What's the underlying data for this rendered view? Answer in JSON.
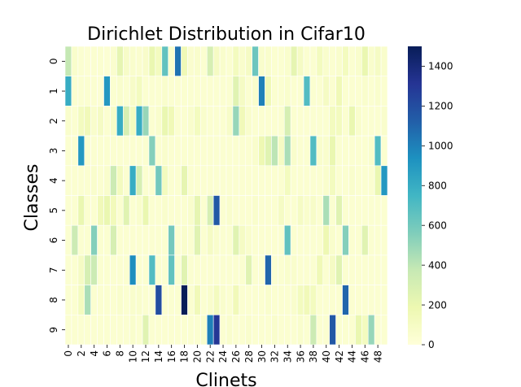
{
  "chart_data": {
    "type": "heatmap",
    "title": "Dirichlet Distribution in Cifar10",
    "xlabel": "Clinets",
    "ylabel": "Classes",
    "x_categories": [
      0,
      1,
      2,
      3,
      4,
      5,
      6,
      7,
      8,
      9,
      10,
      11,
      12,
      13,
      14,
      15,
      16,
      17,
      18,
      19,
      20,
      21,
      22,
      23,
      24,
      25,
      26,
      27,
      28,
      29,
      30,
      31,
      32,
      33,
      34,
      35,
      36,
      37,
      38,
      39,
      40,
      41,
      42,
      43,
      44,
      45,
      46,
      47,
      48,
      49
    ],
    "x_tick_labels": [
      "0",
      "2",
      "4",
      "6",
      "8",
      "10",
      "12",
      "14",
      "16",
      "18",
      "20",
      "22",
      "24",
      "26",
      "28",
      "30",
      "32",
      "34",
      "36",
      "38",
      "40",
      "42",
      "44",
      "46",
      "48"
    ],
    "y_categories": [
      "0",
      "1",
      "2",
      "3",
      "4",
      "5",
      "6",
      "7",
      "8",
      "9"
    ],
    "colorbar": {
      "min": 0,
      "max": 1500,
      "ticks": [
        0,
        200,
        400,
        600,
        800,
        1000,
        1200,
        1400
      ],
      "colormap": "YlGnBu"
    },
    "values": [
      [
        380,
        60,
        40,
        30,
        40,
        40,
        30,
        50,
        220,
        80,
        60,
        50,
        70,
        200,
        120,
        650,
        50,
        1050,
        160,
        50,
        60,
        40,
        300,
        100,
        60,
        40,
        120,
        60,
        100,
        620,
        60,
        60,
        40,
        40,
        60,
        220,
        100,
        40,
        40,
        120,
        60,
        40,
        60,
        120,
        40,
        60,
        200,
        60,
        100,
        60
      ],
      [
        800,
        40,
        40,
        40,
        40,
        30,
        900,
        40,
        60,
        40,
        80,
        120,
        40,
        40,
        40,
        60,
        40,
        40,
        40,
        40,
        40,
        40,
        40,
        40,
        40,
        40,
        250,
        100,
        40,
        60,
        1000,
        160,
        40,
        40,
        60,
        40,
        40,
        700,
        40,
        40,
        100,
        40,
        160,
        40,
        40,
        40,
        60,
        40,
        60,
        40
      ],
      [
        60,
        40,
        120,
        150,
        60,
        100,
        40,
        80,
        800,
        300,
        120,
        800,
        500,
        40,
        60,
        200,
        160,
        40,
        40,
        60,
        120,
        60,
        40,
        40,
        40,
        80,
        500,
        150,
        60,
        40,
        40,
        40,
        40,
        40,
        300,
        40,
        40,
        40,
        40,
        40,
        40,
        120,
        120,
        40,
        200,
        60,
        40,
        40,
        40,
        60
      ],
      [
        40,
        40,
        900,
        40,
        40,
        40,
        40,
        40,
        40,
        40,
        40,
        40,
        40,
        550,
        40,
        60,
        40,
        40,
        40,
        40,
        40,
        40,
        40,
        40,
        40,
        40,
        40,
        40,
        40,
        60,
        180,
        250,
        400,
        100,
        450,
        60,
        40,
        40,
        700,
        60,
        60,
        200,
        40,
        40,
        40,
        40,
        40,
        60,
        700,
        40
      ],
      [
        40,
        40,
        40,
        40,
        60,
        40,
        60,
        350,
        120,
        40,
        800,
        300,
        40,
        40,
        600,
        120,
        40,
        40,
        220,
        40,
        40,
        40,
        40,
        40,
        40,
        40,
        40,
        40,
        40,
        40,
        40,
        40,
        40,
        40,
        120,
        40,
        40,
        40,
        40,
        40,
        60,
        120,
        40,
        40,
        60,
        40,
        40,
        40,
        200,
        900
      ],
      [
        40,
        40,
        200,
        40,
        40,
        150,
        200,
        140,
        40,
        250,
        40,
        60,
        200,
        40,
        40,
        60,
        40,
        40,
        40,
        60,
        220,
        40,
        300,
        1150,
        40,
        60,
        40,
        40,
        40,
        60,
        40,
        40,
        40,
        100,
        40,
        40,
        100,
        60,
        80,
        40,
        450,
        40,
        250,
        40,
        40,
        40,
        40,
        40,
        40,
        40
      ],
      [
        40,
        350,
        40,
        40,
        550,
        40,
        40,
        300,
        40,
        40,
        40,
        40,
        40,
        40,
        40,
        40,
        600,
        40,
        60,
        40,
        250,
        40,
        100,
        60,
        40,
        40,
        250,
        100,
        60,
        40,
        40,
        40,
        40,
        40,
        650,
        40,
        40,
        40,
        40,
        40,
        180,
        60,
        40,
        550,
        40,
        40,
        250,
        40,
        40,
        40
      ],
      [
        40,
        40,
        100,
        300,
        350,
        40,
        40,
        40,
        40,
        40,
        950,
        40,
        40,
        700,
        40,
        40,
        650,
        40,
        250,
        40,
        40,
        40,
        40,
        40,
        40,
        40,
        40,
        40,
        250,
        40,
        40,
        1100,
        40,
        40,
        60,
        60,
        40,
        40,
        40,
        160,
        40,
        100,
        250,
        40,
        40,
        40,
        40,
        40,
        40,
        40
      ],
      [
        40,
        40,
        120,
        450,
        40,
        40,
        40,
        40,
        60,
        40,
        60,
        60,
        40,
        40,
        1200,
        40,
        40,
        40,
        1500,
        40,
        150,
        40,
        60,
        120,
        60,
        40,
        150,
        40,
        40,
        40,
        40,
        60,
        40,
        40,
        40,
        60,
        120,
        150,
        120,
        40,
        40,
        40,
        40,
        1100,
        40,
        40,
        40,
        40,
        40,
        40
      ],
      [
        40,
        40,
        40,
        40,
        40,
        40,
        40,
        40,
        40,
        40,
        60,
        40,
        250,
        40,
        40,
        40,
        40,
        40,
        40,
        40,
        40,
        60,
        1000,
        1300,
        40,
        60,
        40,
        40,
        60,
        40,
        40,
        40,
        60,
        40,
        40,
        40,
        60,
        40,
        350,
        40,
        40,
        1150,
        40,
        40,
        40,
        200,
        120,
        500,
        40,
        40
      ]
    ]
  }
}
